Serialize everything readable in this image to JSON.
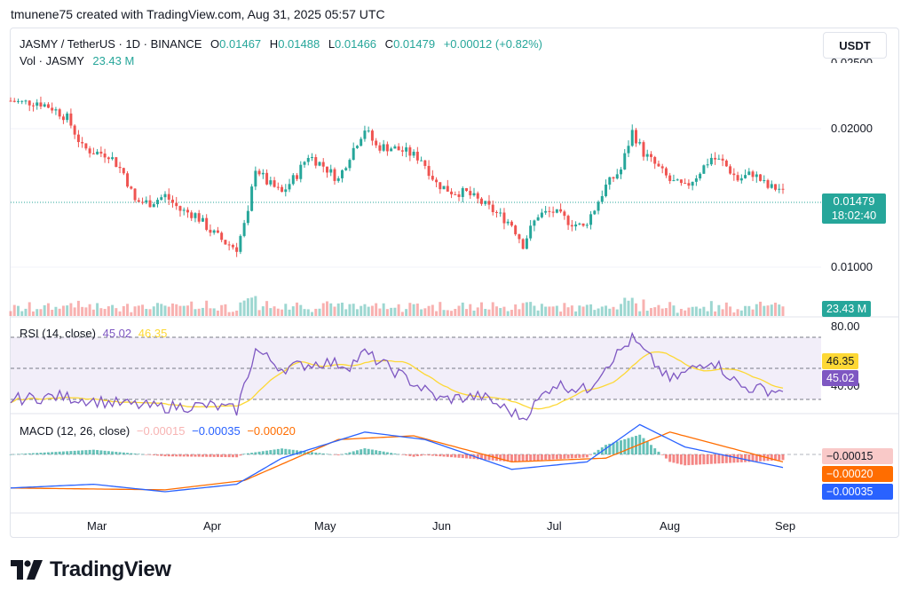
{
  "caption": "tmunene75 created with TradingView.com, Aug 31, 2025 05:57 UTC",
  "header": {
    "symbol": "JASMY / TetherUS · 1D · BINANCE",
    "o_label": "O",
    "o_value": "0.01467",
    "h_label": "H",
    "h_value": "0.01488",
    "l_label": "L",
    "l_value": "0.01466",
    "c_label": "C",
    "c_value": "0.01479",
    "change": "+0.00012 (+0.82%)",
    "vol_label": "Vol · JASMY",
    "vol_value": "23.43 M"
  },
  "currency_button": "USDT",
  "price_axis": {
    "labels": [
      "0.02500",
      "0.02000",
      "0.01000"
    ],
    "top_clipped": "0.02500"
  },
  "current_price": {
    "value": "0.01479",
    "countdown": "18:02:40"
  },
  "volume_badge": "23.43 M",
  "rsi": {
    "label": "RSI (14, close)",
    "rsi_value": "45.02",
    "ma_value": "46.35",
    "axis_labels": [
      "80.00",
      "40.00"
    ]
  },
  "macd": {
    "label": "MACD (12, 26, close)",
    "hist_value": "−0.00015",
    "macd_value": "−0.00035",
    "signal_value": "−0.00020"
  },
  "time_axis": [
    "Mar",
    "Apr",
    "May",
    "Jun",
    "Jul",
    "Aug",
    "Sep"
  ],
  "logo_text": "TradingView",
  "colors": {
    "up": "#26a69a",
    "down": "#ef5350",
    "rsi": "#7e57c2",
    "rsi_ma": "#fdd835",
    "macd": "#2962ff",
    "signal": "#ff6d00",
    "text": "#131722",
    "muted": "#787b86"
  },
  "chart_data": {
    "type": "candlestick",
    "title": "JASMY / TetherUS · 1D · BINANCE",
    "x_range": [
      "2025-02-07",
      "2025-08-31"
    ],
    "y_range": [
      0.0085,
      0.0265
    ],
    "y_scale": "log",
    "close_points": [
      [
        "2025-02-07",
        0.023
      ],
      [
        "2025-02-10",
        0.0228
      ],
      [
        "2025-02-14",
        0.0229
      ],
      [
        "2025-02-18",
        0.0222
      ],
      [
        "2025-02-22",
        0.0211
      ],
      [
        "2025-02-26",
        0.0182
      ],
      [
        "2025-03-01",
        0.0178
      ],
      [
        "2025-03-05",
        0.0176
      ],
      [
        "2025-03-09",
        0.016
      ],
      [
        "2025-03-12",
        0.0139
      ],
      [
        "2025-03-16",
        0.0138
      ],
      [
        "2025-03-20",
        0.0143
      ],
      [
        "2025-03-24",
        0.0133
      ],
      [
        "2025-03-28",
        0.013
      ],
      [
        "2025-04-01",
        0.012
      ],
      [
        "2025-04-05",
        0.0113
      ],
      [
        "2025-04-08",
        0.011
      ],
      [
        "2025-04-11",
        0.013
      ],
      [
        "2025-04-13",
        0.0165
      ],
      [
        "2025-04-16",
        0.0153
      ],
      [
        "2025-04-20",
        0.0145
      ],
      [
        "2025-04-24",
        0.0159
      ],
      [
        "2025-04-27",
        0.0175
      ],
      [
        "2025-05-01",
        0.0166
      ],
      [
        "2025-05-05",
        0.0155
      ],
      [
        "2025-05-08",
        0.0175
      ],
      [
        "2025-05-12",
        0.02
      ],
      [
        "2025-05-15",
        0.0183
      ],
      [
        "2025-05-19",
        0.0182
      ],
      [
        "2025-05-23",
        0.0178
      ],
      [
        "2025-05-27",
        0.0172
      ],
      [
        "2025-05-31",
        0.0152
      ],
      [
        "2025-06-04",
        0.0146
      ],
      [
        "2025-06-08",
        0.0145
      ],
      [
        "2025-06-12",
        0.0138
      ],
      [
        "2025-06-16",
        0.0131
      ],
      [
        "2025-06-20",
        0.0124
      ],
      [
        "2025-06-23",
        0.0112
      ],
      [
        "2025-06-27",
        0.013
      ],
      [
        "2025-07-01",
        0.0132
      ],
      [
        "2025-07-05",
        0.0126
      ],
      [
        "2025-07-09",
        0.0122
      ],
      [
        "2025-07-12",
        0.0134
      ],
      [
        "2025-07-15",
        0.015
      ],
      [
        "2025-07-19",
        0.0163
      ],
      [
        "2025-07-22",
        0.0197
      ],
      [
        "2025-07-25",
        0.0177
      ],
      [
        "2025-07-29",
        0.0164
      ],
      [
        "2025-08-01",
        0.0154
      ],
      [
        "2025-08-05",
        0.0149
      ],
      [
        "2025-08-08",
        0.0158
      ],
      [
        "2025-08-12",
        0.0173
      ],
      [
        "2025-08-15",
        0.0169
      ],
      [
        "2025-08-19",
        0.0155
      ],
      [
        "2025-08-23",
        0.016
      ],
      [
        "2025-08-27",
        0.0149
      ],
      [
        "2025-08-31",
        0.01479
      ]
    ],
    "rsi_points": [
      [
        "2025-02-07",
        40
      ],
      [
        "2025-02-20",
        42
      ],
      [
        "2025-03-05",
        38
      ],
      [
        "2025-03-18",
        35
      ],
      [
        "2025-04-01",
        36
      ],
      [
        "2025-04-08",
        33
      ],
      [
        "2025-04-13",
        72
      ],
      [
        "2025-04-20",
        60
      ],
      [
        "2025-05-01",
        64
      ],
      [
        "2025-05-08",
        62
      ],
      [
        "2025-05-12",
        70
      ],
      [
        "2025-05-20",
        58
      ],
      [
        "2025-06-01",
        40
      ],
      [
        "2025-06-12",
        42
      ],
      [
        "2025-06-23",
        28
      ],
      [
        "2025-07-01",
        50
      ],
      [
        "2025-07-10",
        46
      ],
      [
        "2025-07-15",
        62
      ],
      [
        "2025-07-22",
        79
      ],
      [
        "2025-08-01",
        52
      ],
      [
        "2025-08-12",
        66
      ],
      [
        "2025-08-20",
        48
      ],
      [
        "2025-08-31",
        45.02
      ]
    ],
    "macd_points": [
      [
        "2025-02-07",
        -0.0009
      ],
      [
        "2025-03-01",
        -0.0008
      ],
      [
        "2025-03-20",
        -0.001
      ],
      [
        "2025-04-08",
        -0.0008
      ],
      [
        "2025-04-20",
        -0.0001
      ],
      [
        "2025-05-12",
        0.0006
      ],
      [
        "2025-05-28",
        0.0004
      ],
      [
        "2025-06-20",
        -0.0004
      ],
      [
        "2025-07-10",
        -0.0002
      ],
      [
        "2025-07-24",
        0.0008
      ],
      [
        "2025-08-05",
        0.0002
      ],
      [
        "2025-08-31",
        -0.00035
      ]
    ],
    "signal_points": [
      [
        "2025-02-07",
        -0.0009
      ],
      [
        "2025-03-20",
        -0.00095
      ],
      [
        "2025-04-10",
        -0.0007
      ],
      [
        "2025-05-05",
        0.0004
      ],
      [
        "2025-05-25",
        0.0005
      ],
      [
        "2025-06-20",
        -0.0002
      ],
      [
        "2025-07-15",
        -0.0001
      ],
      [
        "2025-08-01",
        0.0006
      ],
      [
        "2025-08-31",
        -0.0002
      ]
    ]
  }
}
